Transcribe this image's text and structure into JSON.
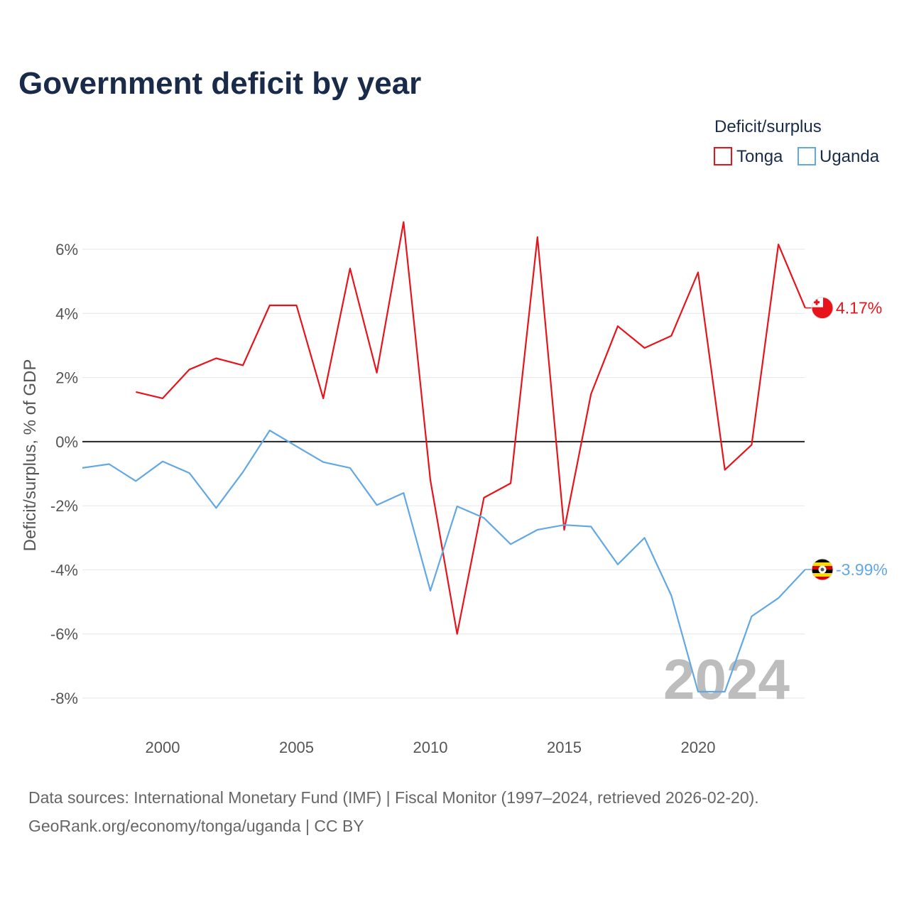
{
  "chart_data": {
    "type": "line",
    "title": "Government deficit by year",
    "ylabel": "Deficit/surplus, % of GDP",
    "xlabel": "",
    "legend_title": "Deficit/surplus",
    "legend_position": "top-right",
    "watermark_year": "2024",
    "xlim": [
      1997,
      2024
    ],
    "ylim": [
      -8.7,
      7.2
    ],
    "x_ticks": [
      2000,
      2005,
      2010,
      2015,
      2020
    ],
    "y_ticks": [
      {
        "value": 6,
        "label": "6%"
      },
      {
        "value": 4,
        "label": "4%"
      },
      {
        "value": 2,
        "label": "2%"
      },
      {
        "value": 0,
        "label": "0%"
      },
      {
        "value": -2,
        "label": "-2%"
      },
      {
        "value": -4,
        "label": "-4%"
      },
      {
        "value": -6,
        "label": "-6%"
      },
      {
        "value": -8,
        "label": "-8%"
      }
    ],
    "series": [
      {
        "name": "Tonga",
        "color": "#e8141c",
        "end_label": "4.17%",
        "flag": "Tonga flag",
        "x": [
          1999,
          2000,
          2001,
          2002,
          2003,
          2004,
          2005,
          2006,
          2007,
          2008,
          2009,
          2010,
          2011,
          2012,
          2013,
          2014,
          2015,
          2016,
          2017,
          2018,
          2019,
          2020,
          2021,
          2022,
          2023,
          2024
        ],
        "values": [
          1.55,
          1.35,
          2.25,
          2.6,
          2.38,
          4.25,
          4.25,
          1.35,
          5.4,
          2.15,
          6.85,
          -1.2,
          -6.0,
          -1.75,
          -1.3,
          6.38,
          -2.75,
          1.48,
          3.6,
          2.92,
          3.3,
          5.28,
          -0.88,
          -0.1,
          6.15,
          4.17
        ]
      },
      {
        "name": "Uganda",
        "color": "#62a8e5",
        "end_label": "-3.99%",
        "flag": "Uganda flag",
        "x": [
          1997,
          1998,
          1999,
          2000,
          2001,
          2002,
          2003,
          2004,
          2005,
          2006,
          2007,
          2008,
          2009,
          2010,
          2011,
          2012,
          2013,
          2014,
          2015,
          2016,
          2017,
          2018,
          2019,
          2020,
          2021,
          2022,
          2023,
          2024
        ],
        "values": [
          -0.82,
          -0.7,
          -1.23,
          -0.62,
          -0.98,
          -2.07,
          -0.95,
          0.35,
          -0.15,
          -0.64,
          -0.82,
          -1.98,
          -1.6,
          -4.65,
          -2.02,
          -2.38,
          -3.2,
          -2.75,
          -2.6,
          -2.65,
          -3.83,
          -3.0,
          -4.8,
          -7.8,
          -7.8,
          -5.45,
          -4.88,
          -3.99
        ]
      }
    ]
  },
  "footer": {
    "source_line": "Data sources: International Monetary Fund (IMF) | Fiscal Monitor (1997–2024, retrieved 2026-02-20).",
    "url_line": "GeoRank.org/economy/tonga/uganda | CC BY"
  }
}
